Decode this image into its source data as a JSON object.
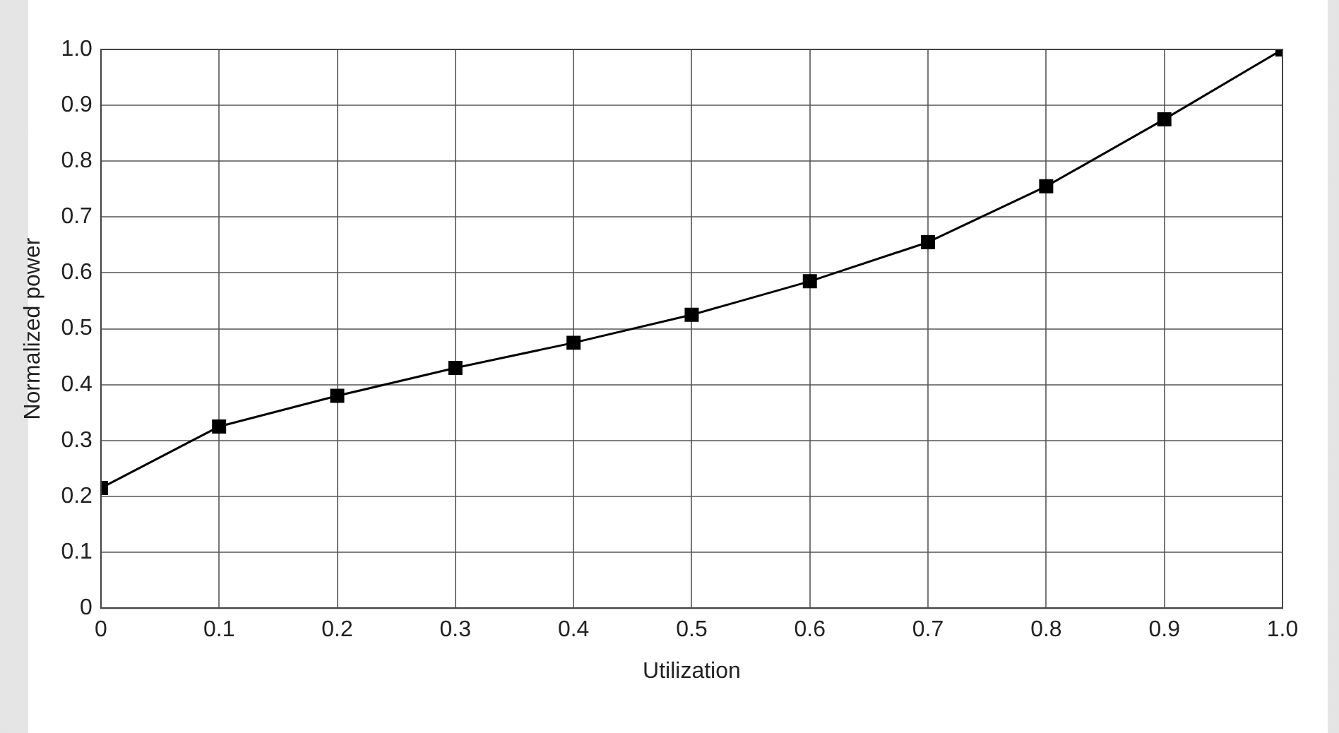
{
  "chart_data": {
    "type": "line",
    "xlabel": "Utilization",
    "ylabel": "Normalized power",
    "x": [
      0,
      0.1,
      0.2,
      0.3,
      0.4,
      0.5,
      0.6,
      0.7,
      0.8,
      0.9,
      1.0
    ],
    "series": [
      {
        "color": "#000000",
        "values": [
          0.215,
          0.325,
          0.38,
          0.43,
          0.475,
          0.525,
          0.585,
          0.655,
          0.755,
          0.875,
          1.0
        ]
      }
    ],
    "xlim": [
      0,
      1
    ],
    "ylim": [
      0,
      1
    ],
    "xticks": [
      0,
      0.1,
      0.2,
      0.3,
      0.4,
      0.5,
      0.6,
      0.7,
      0.8,
      0.9,
      {
        "value": 1,
        "label": "1.0"
      }
    ],
    "yticks": [
      0,
      0.1,
      0.2,
      0.3,
      0.4,
      0.5,
      0.6,
      0.7,
      0.8,
      0.9,
      {
        "value": 1,
        "label": "1.0"
      }
    ],
    "grid": true,
    "marker": "square",
    "line_style": "solid",
    "legend": false
  }
}
